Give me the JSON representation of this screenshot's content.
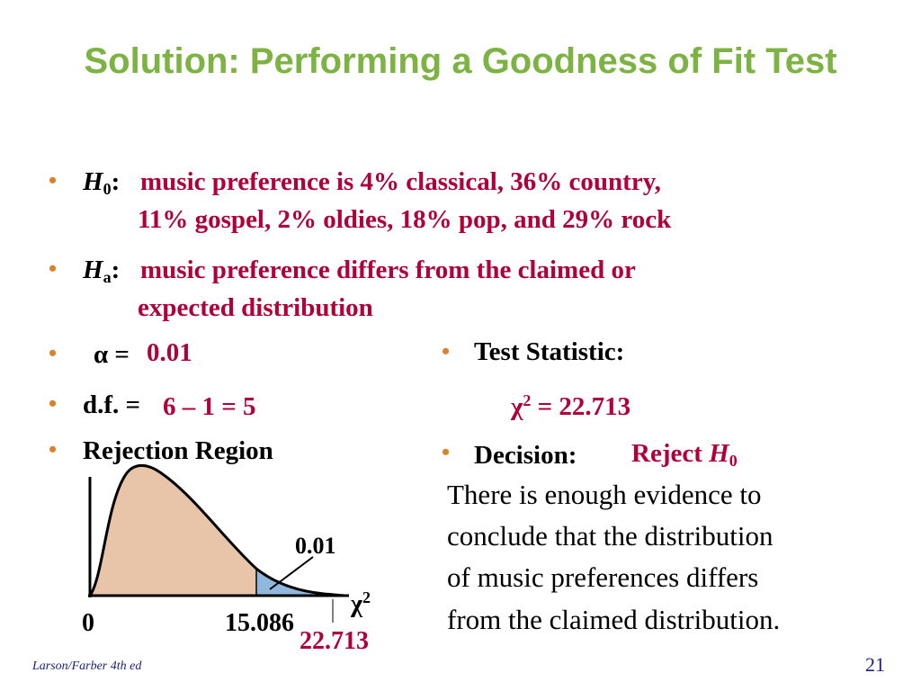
{
  "title": "Solution: Performing a Goodness of Fit Test",
  "h0": {
    "symbol": "H",
    "sub": "0",
    "colon": ":",
    "line1": "music preference is 4% classical, 36% country,",
    "line2": "11% gospel, 2% oldies, 18% pop, and 29% rock"
  },
  "ha": {
    "symbol": "H",
    "sub": "a",
    "colon": ":",
    "line1": "music preference differs from the claimed or",
    "line2": "expected distribution"
  },
  "alpha": {
    "label": "α =",
    "value": "0.01"
  },
  "df": {
    "label": "d.f. =",
    "value": "6 – 1 = 5"
  },
  "rejection_region": "Rejection Region",
  "test_statistic": {
    "label": "Test Statistic:",
    "chi": "χ",
    "sup": "2",
    "value": "= 22.713"
  },
  "decision": {
    "label": "Decision:",
    "reject": "Reject",
    "h": "H",
    "sub": "0",
    "text_lines": [
      "There is enough evidence to",
      "conclude that the distribution",
      "of music preferences differs",
      "from the claimed distribution."
    ]
  },
  "chart": {
    "area_label": "0.01",
    "axis_symbol": "χ",
    "axis_sup": "2",
    "zero": "0",
    "critical": "15.086",
    "statistic": "22.713",
    "colors": {
      "body": "#e8c4a8",
      "tail": "#8fb8dc"
    }
  },
  "footer": {
    "source": "Larson/Farber 4th ed",
    "page": "21"
  },
  "colors": {
    "title": "#7cb342",
    "accent": "#b0003a",
    "bullet": "#d9822b"
  }
}
